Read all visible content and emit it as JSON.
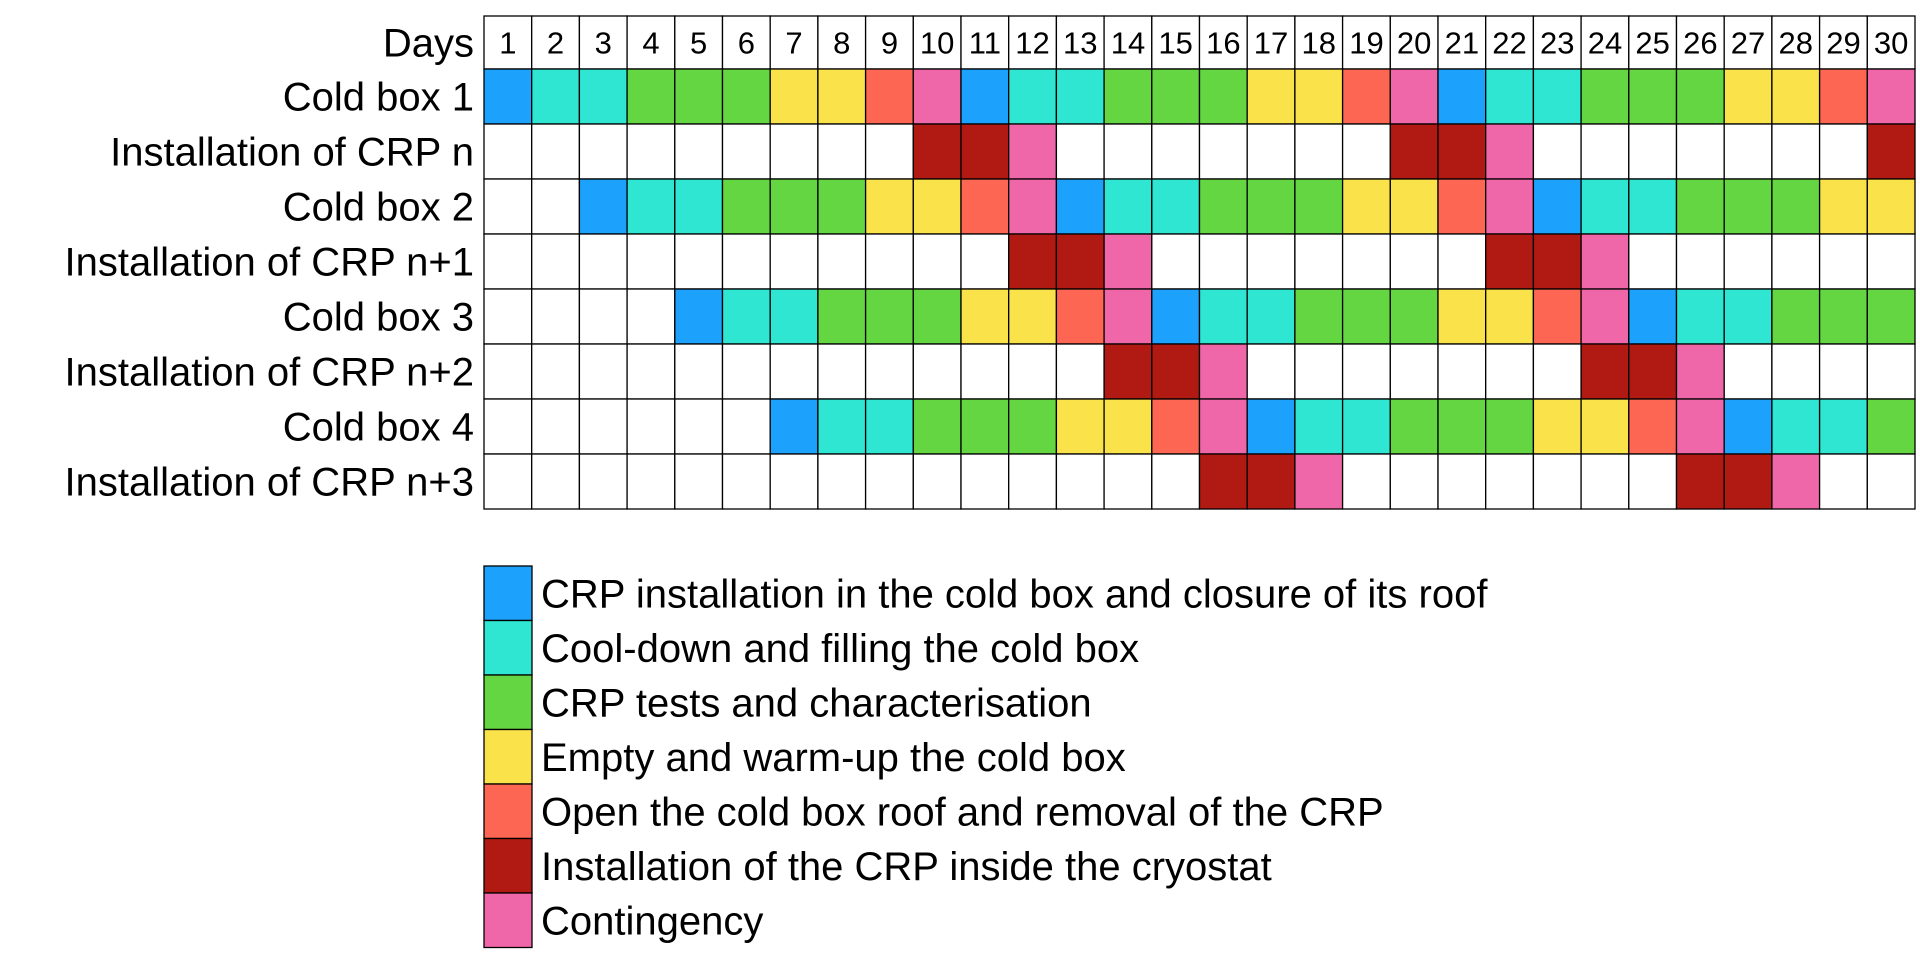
{
  "chart_data": {
    "type": "table",
    "header_label": "Days",
    "days": [
      1,
      2,
      3,
      4,
      5,
      6,
      7,
      8,
      9,
      10,
      11,
      12,
      13,
      14,
      15,
      16,
      17,
      18,
      19,
      20,
      21,
      22,
      23,
      24,
      25,
      26,
      27,
      28,
      29,
      30
    ],
    "rows": [
      {
        "label": "Cold box 1",
        "cells": [
          "I",
          "C",
          "C",
          "T",
          "T",
          "T",
          "W",
          "W",
          "O",
          "X",
          "I",
          "C",
          "C",
          "T",
          "T",
          "T",
          "W",
          "W",
          "O",
          "X",
          "I",
          "C",
          "C",
          "T",
          "T",
          "T",
          "W",
          "W",
          "O",
          "X"
        ]
      },
      {
        "label": "Installation of CRP n",
        "cells": [
          "",
          "",
          "",
          "",
          "",
          "",
          "",
          "",
          "",
          "R",
          "R",
          "X",
          "",
          "",
          "",
          "",
          "",
          "",
          "",
          "R",
          "R",
          "X",
          "",
          "",
          "",
          "",
          "",
          "",
          "",
          "R"
        ]
      },
      {
        "label": "Cold box 2",
        "cells": [
          "",
          "",
          "I",
          "C",
          "C",
          "T",
          "T",
          "T",
          "W",
          "W",
          "O",
          "X",
          "I",
          "C",
          "C",
          "T",
          "T",
          "T",
          "W",
          "W",
          "O",
          "X",
          "I",
          "C",
          "C",
          "T",
          "T",
          "T",
          "W",
          "W"
        ]
      },
      {
        "label": "Installation of CRP n+1",
        "cells": [
          "",
          "",
          "",
          "",
          "",
          "",
          "",
          "",
          "",
          "",
          "",
          "R",
          "R",
          "X",
          "",
          "",
          "",
          "",
          "",
          "",
          "",
          "R",
          "R",
          "X",
          "",
          "",
          "",
          "",
          "",
          ""
        ]
      },
      {
        "label": "Cold box 3",
        "cells": [
          "",
          "",
          "",
          "",
          "I",
          "C",
          "C",
          "T",
          "T",
          "T",
          "W",
          "W",
          "O",
          "X",
          "I",
          "C",
          "C",
          "T",
          "T",
          "T",
          "W",
          "W",
          "O",
          "X",
          "I",
          "C",
          "C",
          "T",
          "T",
          "T"
        ]
      },
      {
        "label": "Installation of CRP n+2",
        "cells": [
          "",
          "",
          "",
          "",
          "",
          "",
          "",
          "",
          "",
          "",
          "",
          "",
          "",
          "R",
          "R",
          "X",
          "",
          "",
          "",
          "",
          "",
          "",
          "",
          "R",
          "R",
          "X",
          "",
          "",
          "",
          ""
        ]
      },
      {
        "label": "Cold box 4",
        "cells": [
          "",
          "",
          "",
          "",
          "",
          "",
          "I",
          "C",
          "C",
          "T",
          "T",
          "T",
          "W",
          "W",
          "O",
          "X",
          "I",
          "C",
          "C",
          "T",
          "T",
          "T",
          "W",
          "W",
          "O",
          "X",
          "I",
          "C",
          "C",
          "T"
        ]
      },
      {
        "label": "Installation of CRP n+3",
        "cells": [
          "",
          "",
          "",
          "",
          "",
          "",
          "",
          "",
          "",
          "",
          "",
          "",
          "",
          "",
          "",
          "R",
          "R",
          "X",
          "",
          "",
          "",
          "",
          "",
          "",
          "",
          "R",
          "R",
          "X",
          "",
          ""
        ]
      }
    ],
    "legend": [
      {
        "code": "I",
        "label": "CRP installation in the cold box and closure of its roof",
        "color": "#1ca2fc"
      },
      {
        "code": "C",
        "label": "Cool-down and filling the cold box",
        "color": "#2ee6d2"
      },
      {
        "code": "T",
        "label": "CRP tests and characterisation",
        "color": "#63d641"
      },
      {
        "code": "W",
        "label": "Empty and warm-up the cold box",
        "color": "#fae24a"
      },
      {
        "code": "O",
        "label": "Open the cold box roof and removal of the CRP",
        "color": "#fd6652"
      },
      {
        "code": "R",
        "label": "Installation of the CRP inside the cryostat",
        "color": "#b01a12"
      },
      {
        "code": "X",
        "label": "Contingency",
        "color": "#ef67a8"
      }
    ],
    "empty_color": "#ffffff"
  }
}
